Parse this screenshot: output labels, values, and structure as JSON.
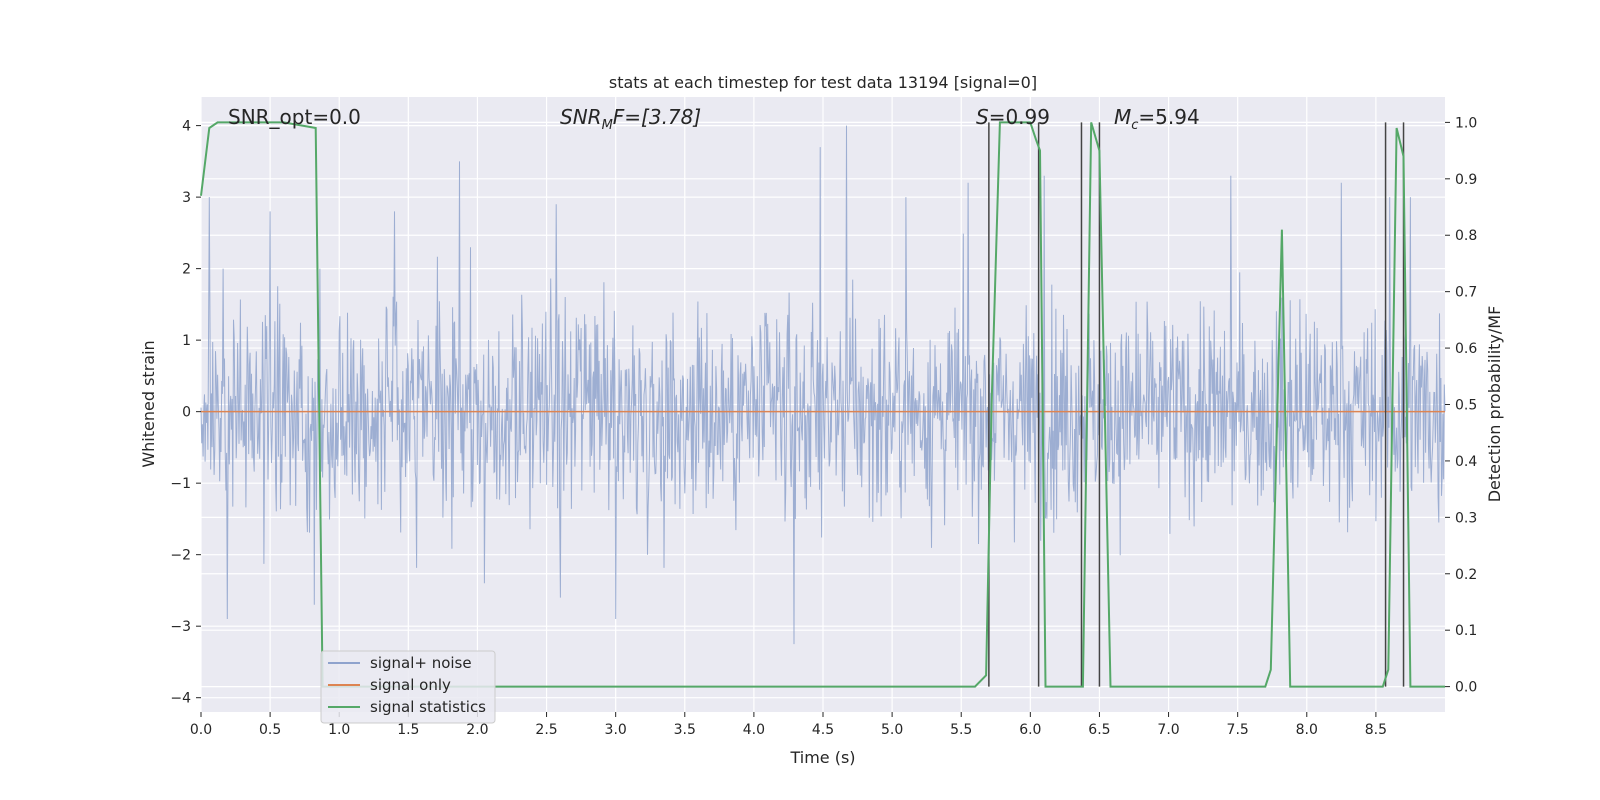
{
  "chart_data": {
    "type": "line",
    "title": "stats at each timestep for test data 13194 [signal=0]",
    "xlabel": "Time (s)",
    "ylabel_left": "Whitened strain",
    "ylabel_right": "Detection probability/MF",
    "xlim": [
      0.0,
      9.0
    ],
    "ylim_left": [
      -4.2,
      4.4
    ],
    "ylim_right": [
      -0.045,
      1.045
    ],
    "x_ticks": [
      "0.0",
      "0.5",
      "1.0",
      "1.5",
      "2.0",
      "2.5",
      "3.0",
      "3.5",
      "4.0",
      "4.5",
      "5.0",
      "5.5",
      "6.0",
      "6.5",
      "7.0",
      "7.5",
      "8.0",
      "8.5"
    ],
    "y_left_ticks": [
      "−4",
      "−3",
      "−2",
      "−1",
      "0",
      "1",
      "2",
      "3",
      "4"
    ],
    "y_right_ticks": [
      "0.0",
      "0.1",
      "0.2",
      "0.3",
      "0.4",
      "0.5",
      "0.6",
      "0.7",
      "0.8",
      "0.9",
      "1.0"
    ],
    "grid": true,
    "legend_placement": "lower-left",
    "annotations": {
      "snr_opt": "SNR_opt=0.0",
      "snr_mf": "F=[3.78]",
      "snr_mf_prefix": "SNR",
      "snr_mf_sub": "M",
      "s": "=0.99",
      "s_prefix": "S",
      "mc": "=5.94",
      "mc_prefix": "M",
      "mc_sub": "c"
    },
    "series": [
      {
        "name": "signal+ noise",
        "color": "#8fa3cd",
        "axis": "left",
        "style": "noise",
        "envelope_typical": [
          -1.6,
          1.6
        ],
        "peaks": [
          [
            0.06,
            3.0
          ],
          [
            0.16,
            2.0
          ],
          [
            0.19,
            -2.9
          ],
          [
            0.5,
            2.8
          ],
          [
            0.82,
            -2.7
          ],
          [
            0.86,
            2.0
          ],
          [
            1.4,
            2.8
          ],
          [
            1.87,
            3.5
          ],
          [
            1.95,
            2.3
          ],
          [
            2.05,
            -2.4
          ],
          [
            2.57,
            2.9
          ],
          [
            2.6,
            -2.6
          ],
          [
            3.0,
            -2.9
          ],
          [
            4.29,
            -3.25
          ],
          [
            4.48,
            3.7
          ],
          [
            4.67,
            4.0
          ],
          [
            5.1,
            3.0
          ],
          [
            5.55,
            3.2
          ],
          [
            6.1,
            3.3
          ],
          [
            7.45,
            3.3
          ],
          [
            8.25,
            3.2
          ],
          [
            8.6,
            3.0
          ],
          [
            8.75,
            3.0
          ]
        ]
      },
      {
        "name": "signal only",
        "color": "#dd8452",
        "axis": "left",
        "x": [
          0.0,
          9.0
        ],
        "y": [
          0.0,
          0.0
        ]
      },
      {
        "name": "signal statistics",
        "color": "#55a868",
        "axis": "right",
        "x": [
          0.0,
          0.06,
          0.12,
          0.3,
          0.6,
          0.83,
          0.88,
          0.95,
          1.0,
          5.6,
          5.68,
          5.72,
          5.78,
          6.0,
          6.04,
          6.07,
          6.11,
          6.18,
          6.27,
          6.38,
          6.44,
          6.5,
          6.58,
          6.62,
          6.7,
          7.3,
          7.7,
          7.74,
          7.82,
          7.88,
          7.95,
          8.3,
          8.55,
          8.59,
          8.65,
          8.7,
          8.75,
          8.8,
          9.0
        ],
        "y": [
          0.87,
          0.99,
          1.0,
          1.0,
          1.0,
          0.99,
          0.0,
          0.0,
          0.0,
          0.0,
          0.02,
          0.5,
          1.0,
          1.0,
          0.97,
          0.95,
          0.0,
          0.0,
          0.0,
          0.0,
          1.0,
          0.95,
          0.0,
          0.0,
          0.0,
          0.0,
          0.0,
          0.03,
          0.81,
          0.0,
          0.0,
          0.0,
          0.0,
          0.03,
          0.99,
          0.94,
          0.0,
          0.0,
          0.0
        ]
      }
    ],
    "vlines_x": [
      5.7,
      6.06,
      6.37,
      6.5,
      8.57,
      8.7
    ],
    "vline_color": "#444444"
  }
}
